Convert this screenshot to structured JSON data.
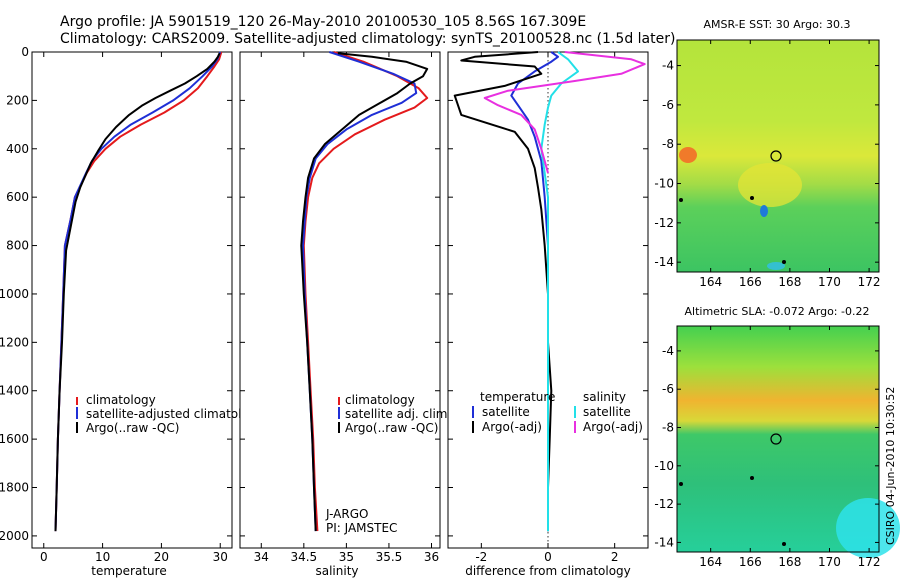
{
  "header": {
    "line1": "Argo profile: JA 5901519_120 26-May-2010 20100530_105 8.56S 167.309E",
    "line2": "Climatology: CARS2009. Satellite-adjusted climatology: synTS_20100528.nc (1.5d later)"
  },
  "side_label": "CSIRO 04-Jun-2010 10:30:52",
  "colors": {
    "clim": "#e41a1c",
    "sat": "#1f2fd6",
    "argo": "#000000",
    "cyan": "#22e0e8",
    "magenta": "#e830e0"
  },
  "chart_data": [
    {
      "type": "line",
      "id": "temperature",
      "xlabel": "temperature",
      "xlim": [
        -2,
        32
      ],
      "ylim": [
        0,
        2050
      ],
      "x_ticks": [
        0,
        10,
        20,
        30
      ],
      "y_ticks": [
        0,
        200,
        400,
        600,
        800,
        1000,
        1200,
        1400,
        1600,
        1800,
        2000
      ],
      "legend": [
        "climatology",
        "satellite-adjusted climatology",
        "Argo(..raw -QC)"
      ],
      "series": [
        {
          "name": "climatology",
          "color": "#e41a1c",
          "points": [
            [
              30.2,
              0
            ],
            [
              29.8,
              30
            ],
            [
              29,
              60
            ],
            [
              27.8,
              100
            ],
            [
              26.2,
              150
            ],
            [
              23.8,
              200
            ],
            [
              20.5,
              250
            ],
            [
              16.5,
              300
            ],
            [
              13,
              350
            ],
            [
              10.5,
              400
            ],
            [
              8.6,
              450
            ],
            [
              7.3,
              500
            ],
            [
              5.3,
              600
            ],
            [
              4.5,
              700
            ],
            [
              3.6,
              800
            ],
            [
              3.3,
              1000
            ],
            [
              3,
              1200
            ],
            [
              2.7,
              1400
            ],
            [
              2.4,
              1600
            ],
            [
              2.2,
              1800
            ],
            [
              2,
              1980
            ]
          ]
        },
        {
          "name": "satellite-adjusted climatology",
          "color": "#1f2fd6",
          "points": [
            [
              30,
              0
            ],
            [
              29.5,
              30
            ],
            [
              28.6,
              60
            ],
            [
              27,
              100
            ],
            [
              24.8,
              150
            ],
            [
              22,
              200
            ],
            [
              18.5,
              250
            ],
            [
              14.8,
              300
            ],
            [
              12,
              350
            ],
            [
              9.8,
              400
            ],
            [
              8.2,
              450
            ],
            [
              7.2,
              500
            ],
            [
              5.3,
              600
            ],
            [
              4.5,
              700
            ],
            [
              3.6,
              800
            ],
            [
              3.3,
              1000
            ],
            [
              3,
              1200
            ],
            [
              2.7,
              1400
            ],
            [
              2.4,
              1600
            ],
            [
              2.2,
              1800
            ],
            [
              2,
              1980
            ]
          ]
        },
        {
          "name": "Argo(..raw -QC)",
          "color": "#000000",
          "points": [
            [
              29.9,
              5
            ],
            [
              29.6,
              20
            ],
            [
              29,
              40
            ],
            [
              27.8,
              70
            ],
            [
              26,
              100
            ],
            [
              24,
              130
            ],
            [
              21.5,
              160
            ],
            [
              19,
              190
            ],
            [
              16.8,
              220
            ],
            [
              14.5,
              260
            ],
            [
              12.3,
              310
            ],
            [
              10.5,
              360
            ],
            [
              9.2,
              410
            ],
            [
              8,
              460
            ],
            [
              7.1,
              510
            ],
            [
              6.2,
              560
            ],
            [
              5.4,
              620
            ],
            [
              4.6,
              720
            ],
            [
              3.8,
              820
            ],
            [
              3.4,
              1000
            ],
            [
              3.1,
              1200
            ],
            [
              2.7,
              1400
            ],
            [
              2.4,
              1600
            ],
            [
              2.2,
              1800
            ],
            [
              2,
              1980
            ]
          ]
        }
      ]
    },
    {
      "type": "line",
      "id": "salinity",
      "xlabel": "salinity",
      "xlim": [
        33.75,
        36.1
      ],
      "ylim": [
        0,
        2050
      ],
      "x_ticks": [
        34,
        34.5,
        35,
        35.5,
        36
      ],
      "legend": [
        "climatology",
        "satellite adj. clim.",
        "Argo(..raw -QC)"
      ],
      "annotation": [
        "J-ARGO",
        "PI: JAMSTEC"
      ],
      "series": [
        {
          "name": "climatology",
          "color": "#e41a1c",
          "points": [
            [
              34.85,
              0
            ],
            [
              35.2,
              40
            ],
            [
              35.6,
              100
            ],
            [
              35.85,
              150
            ],
            [
              35.95,
              190
            ],
            [
              35.8,
              230
            ],
            [
              35.45,
              280
            ],
            [
              35.1,
              340
            ],
            [
              34.85,
              400
            ],
            [
              34.68,
              460
            ],
            [
              34.6,
              520
            ],
            [
              34.55,
              600
            ],
            [
              34.52,
              700
            ],
            [
              34.5,
              800
            ],
            [
              34.52,
              1000
            ],
            [
              34.55,
              1200
            ],
            [
              34.58,
              1400
            ],
            [
              34.61,
              1600
            ],
            [
              34.63,
              1800
            ],
            [
              34.66,
              1980
            ]
          ]
        },
        {
          "name": "satellite adj. clim.",
          "color": "#1f2fd6",
          "points": [
            [
              34.8,
              0
            ],
            [
              35.15,
              40
            ],
            [
              35.55,
              90
            ],
            [
              35.8,
              130
            ],
            [
              35.82,
              170
            ],
            [
              35.65,
              210
            ],
            [
              35.3,
              260
            ],
            [
              35,
              320
            ],
            [
              34.78,
              380
            ],
            [
              34.64,
              440
            ],
            [
              34.57,
              520
            ],
            [
              34.53,
              600
            ],
            [
              34.51,
              700
            ],
            [
              34.49,
              800
            ],
            [
              34.51,
              1000
            ],
            [
              34.54,
              1200
            ],
            [
              34.57,
              1400
            ],
            [
              34.6,
              1600
            ],
            [
              34.62,
              1800
            ],
            [
              34.64,
              1980
            ]
          ]
        },
        {
          "name": "Argo(..raw -QC)",
          "color": "#000000",
          "points": [
            [
              34.9,
              5
            ],
            [
              35.3,
              20
            ],
            [
              35.7,
              40
            ],
            [
              35.95,
              70
            ],
            [
              35.9,
              100
            ],
            [
              35.75,
              130
            ],
            [
              35.6,
              170
            ],
            [
              35.4,
              210
            ],
            [
              35.15,
              260
            ],
            [
              34.95,
              320
            ],
            [
              34.75,
              380
            ],
            [
              34.62,
              440
            ],
            [
              34.55,
              520
            ],
            [
              34.52,
              600
            ],
            [
              34.49,
              700
            ],
            [
              34.47,
              800
            ],
            [
              34.5,
              1000
            ],
            [
              34.54,
              1200
            ],
            [
              34.57,
              1400
            ],
            [
              34.6,
              1600
            ],
            [
              34.62,
              1800
            ],
            [
              34.64,
              1980
            ]
          ]
        }
      ]
    },
    {
      "type": "line",
      "id": "difference",
      "xlabel": "difference from climatology",
      "xlim": [
        -3,
        3
      ],
      "ylim": [
        0,
        2050
      ],
      "x_ticks": [
        -2,
        0,
        2
      ],
      "legend_titles": [
        "temperature",
        "salinity"
      ],
      "legend": [
        "satellite",
        "Argo(-adj)",
        "satellite",
        "Argo(-adj)"
      ],
      "series": [
        {
          "name": "temperature satellite",
          "color": "#1f2fd6",
          "points": [
            [
              0.1,
              0
            ],
            [
              0.3,
              20
            ],
            [
              0.1,
              40
            ],
            [
              -0.4,
              80
            ],
            [
              -0.9,
              130
            ],
            [
              -1.1,
              180
            ],
            [
              -0.9,
              220
            ],
            [
              -0.6,
              280
            ],
            [
              -0.4,
              350
            ],
            [
              -0.2,
              450
            ],
            [
              -0.1,
              600
            ],
            [
              0,
              800
            ],
            [
              0,
              1000
            ],
            [
              0,
              1200
            ],
            [
              0,
              1400
            ],
            [
              0,
              1600
            ],
            [
              0,
              1800
            ],
            [
              0,
              1980
            ]
          ]
        },
        {
          "name": "temperature Argo(-adj)",
          "color": "#000000",
          "points": [
            [
              -0.3,
              0
            ],
            [
              -2.2,
              20
            ],
            [
              -2.6,
              35
            ],
            [
              -0.4,
              60
            ],
            [
              -0.2,
              90
            ],
            [
              -1.3,
              140
            ],
            [
              -2.8,
              180
            ],
            [
              -2.6,
              260
            ],
            [
              -1,
              330
            ],
            [
              -0.6,
              400
            ],
            [
              -0.4,
              480
            ],
            [
              -0.3,
              560
            ],
            [
              -0.2,
              650
            ],
            [
              -0.1,
              800
            ],
            [
              0,
              1000
            ],
            [
              0,
              1200
            ],
            [
              0.1,
              1400
            ],
            [
              0.05,
              1600
            ],
            [
              0,
              1800
            ],
            [
              0,
              1980
            ]
          ]
        },
        {
          "name": "salinity satellite",
          "color": "#22e0e8",
          "points": [
            [
              0.3,
              0
            ],
            [
              0.6,
              30
            ],
            [
              0.9,
              80
            ],
            [
              0.4,
              130
            ],
            [
              0.1,
              180
            ],
            [
              0,
              230
            ],
            [
              -0.1,
              300
            ],
            [
              -0.2,
              400
            ],
            [
              -0.1,
              500
            ],
            [
              0,
              600
            ],
            [
              0,
              800
            ],
            [
              0,
              1000
            ],
            [
              0,
              1200
            ],
            [
              0,
              1400
            ],
            [
              0,
              1600
            ],
            [
              0,
              1800
            ],
            [
              0,
              1980
            ]
          ]
        },
        {
          "name": "salinity Argo(-adj)",
          "color": "#e830e0",
          "points": [
            [
              0.5,
              0
            ],
            [
              2.5,
              30
            ],
            [
              2.9,
              50
            ],
            [
              2.2,
              90
            ],
            [
              0.8,
              120
            ],
            [
              -1.2,
              160
            ],
            [
              -1.9,
              190
            ],
            [
              -1.5,
              220
            ],
            [
              -0.8,
              260
            ],
            [
              -0.4,
              320
            ],
            [
              -0.2,
              400
            ],
            [
              0,
              500
            ]
          ]
        }
      ]
    },
    {
      "type": "heatmap",
      "id": "sst_map",
      "title": "AMSR-E SST: 30 Argo: 30.3",
      "x_ticks": [
        164,
        166,
        168,
        170,
        172
      ],
      "y_ticks": [
        -4,
        -6,
        -8,
        -10,
        -12,
        -14
      ],
      "xlim": [
        162.3,
        172.5
      ],
      "ylim": [
        -14.5,
        -2.7
      ],
      "marker": [
        167.3,
        -8.6
      ]
    },
    {
      "type": "heatmap",
      "id": "sla_map",
      "title": "Altimetric SLA: -0.072 Argo: -0.22",
      "x_ticks": [
        164,
        166,
        168,
        170,
        172
      ],
      "y_ticks": [
        -4,
        -6,
        -8,
        -10,
        -12,
        -14
      ],
      "xlim": [
        162.3,
        172.5
      ],
      "ylim": [
        -14.5,
        -2.7
      ],
      "marker": [
        167.3,
        -8.6
      ]
    }
  ]
}
